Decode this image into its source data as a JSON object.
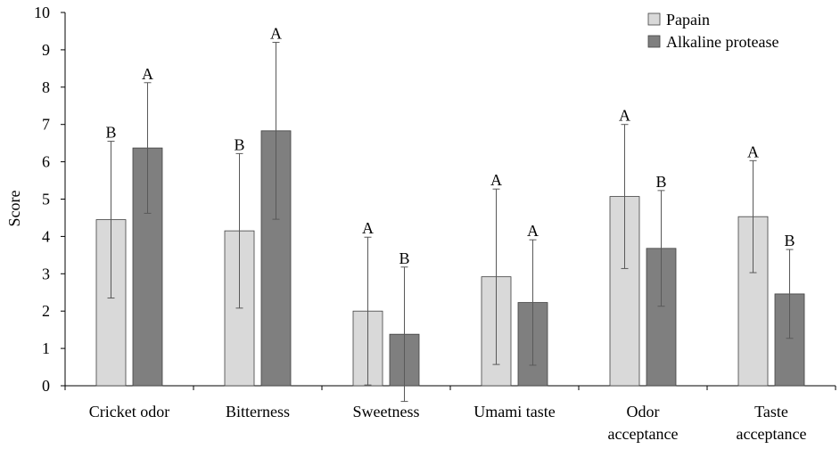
{
  "chart_data": {
    "type": "bar",
    "title": "",
    "xlabel": "",
    "ylabel": "Score",
    "ylim": [
      0,
      10
    ],
    "yticks": [
      0,
      1,
      2,
      3,
      4,
      5,
      6,
      7,
      8,
      9,
      10
    ],
    "grid": false,
    "legend_position": "top-right",
    "categories": [
      [
        "Cricket odor"
      ],
      [
        "Bitterness"
      ],
      [
        "Sweetness"
      ],
      [
        "Umami taste"
      ],
      [
        "Odor",
        "acceptance"
      ],
      [
        "Taste",
        "acceptance"
      ]
    ],
    "series": [
      {
        "name": "Papain",
        "color": "#d9d9d9",
        "values": [
          4.45,
          4.15,
          2.0,
          2.92,
          5.07,
          4.53
        ],
        "errors": [
          2.1,
          2.07,
          1.98,
          2.35,
          1.93,
          1.5
        ],
        "letters": [
          "B",
          "B",
          "A",
          "A",
          "A",
          "A"
        ]
      },
      {
        "name": "Alkaline protease",
        "color": "#7f7f7f",
        "values": [
          6.37,
          6.83,
          1.38,
          2.23,
          3.68,
          2.46
        ],
        "errors": [
          1.75,
          2.37,
          1.8,
          1.68,
          1.55,
          1.19
        ],
        "letters": [
          "A",
          "A",
          "B",
          "A",
          "B",
          "B"
        ]
      }
    ]
  }
}
